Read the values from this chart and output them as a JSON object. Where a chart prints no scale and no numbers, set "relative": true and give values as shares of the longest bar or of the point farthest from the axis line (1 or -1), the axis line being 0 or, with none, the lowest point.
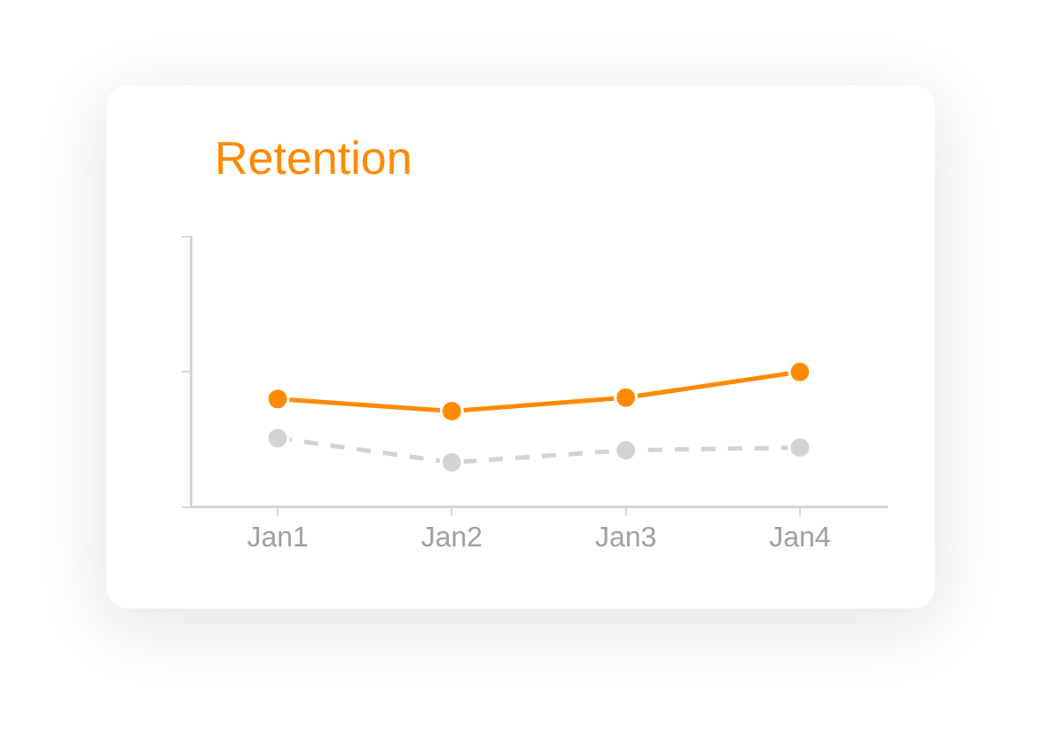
{
  "chart_data": {
    "type": "line",
    "title": "Retention",
    "categories": [
      "Jan1",
      "Jan2",
      "Jan3",
      "Jan4"
    ],
    "relative": true,
    "grid": false,
    "legend": false,
    "marker": "circle",
    "series": [
      {
        "color": "#ff8a00",
        "values": [
          0.8,
          0.71,
          0.81,
          1.0
        ],
        "line_style": "solid"
      },
      {
        "color": "#d3d3d3",
        "values": [
          0.51,
          0.33,
          0.42,
          0.44
        ],
        "line_style": "dashed"
      }
    ]
  }
}
